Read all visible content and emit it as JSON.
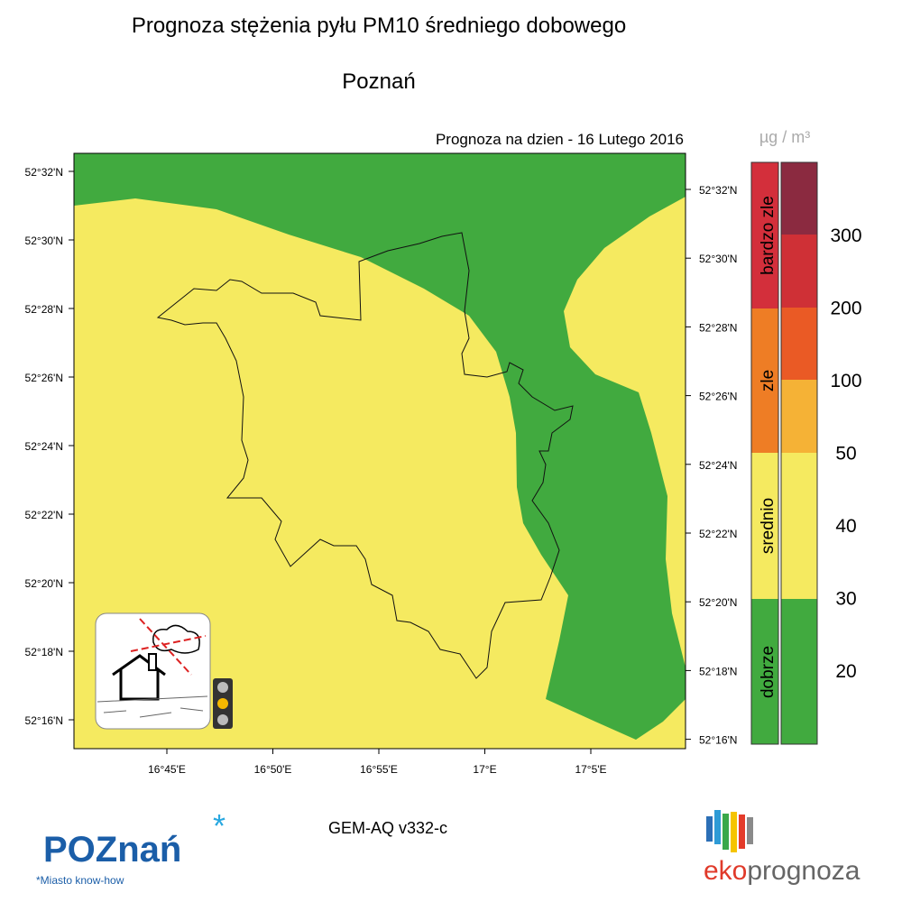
{
  "header": {
    "title": "Prognoza stężenia pyłu PM10 średniego dobowego",
    "city": "Poznań",
    "forecast_date": "Prognoza na dzien -  16 Lutego 2016"
  },
  "map": {
    "lat_labels_left": [
      "52°32'N",
      "52°30'N",
      "52°28'N",
      "52°26'N",
      "52°24'N",
      "52°22'N",
      "52°20'N",
      "52°18'N",
      "52°16'N"
    ],
    "lat_labels_right": [
      "52°32'N",
      "52°30'N",
      "52°28'N",
      "52°26'N",
      "52°24'N",
      "52°22'N",
      "52°20'N",
      "52°18'N",
      "52°16'N"
    ],
    "lon_labels": [
      "16°45'E",
      "16°50'E",
      "16°55'E",
      "17°E",
      "17°5'E"
    ]
  },
  "legend": {
    "unit": "µg / m³",
    "categories": [
      "bardzo zle",
      "zle",
      "srednio",
      "dobrze"
    ],
    "levels": [
      300,
      200,
      100,
      50,
      40,
      30,
      20
    ]
  },
  "footer": {
    "model": "GEM-AQ v332-c",
    "logo_left": "POZnań",
    "logo_left_tagline": "*Miasto know-how",
    "logo_right_eko": "eko",
    "logo_right_prognoza": "prognoza"
  }
}
